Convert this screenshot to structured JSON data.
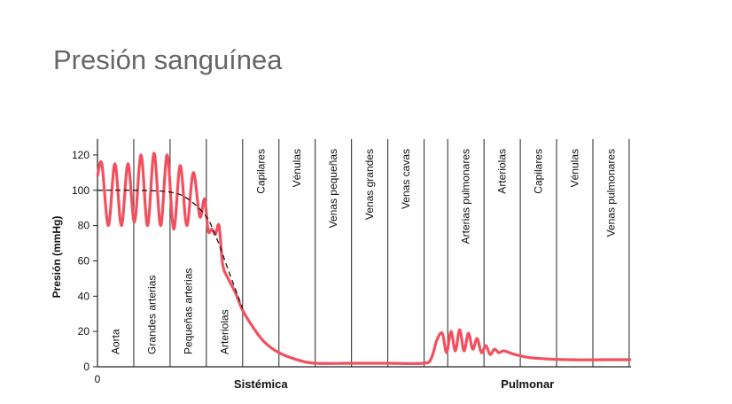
{
  "title": "Presión sanguínea",
  "chart_data": {
    "type": "line",
    "y_label": "Presión (mmHg)",
    "xlim": [
      0,
      14.7
    ],
    "xticks": [
      0
    ],
    "ylim": [
      0,
      129
    ],
    "yticks": [
      0,
      20,
      40,
      60,
      80,
      100,
      120
    ],
    "dividers": [
      1,
      2,
      3,
      4,
      5,
      6,
      7,
      8,
      9,
      9.65,
      10.65,
      11.65,
      12.65,
      13.65,
      14.65
    ],
    "columns": [
      "Aorta",
      "Grandes arterias",
      "Pequeñas arterias",
      "Arteriolas",
      "Capilares",
      "Vénulas",
      "Venas pequeñas",
      "Venas grandes",
      "Venas cavas",
      null,
      "Arterias pulmonares",
      "Arteriolas",
      "Capilares",
      "Vénulas",
      "Venas pulmonares"
    ],
    "groups": [
      "Sistémica",
      "Pulmonar"
    ],
    "series": [
      {
        "color": "#f2505e",
        "style": "solid",
        "x": [
          0,
          0.12,
          0.3,
          0.48,
          0.66,
          0.84,
          1.02,
          1.2,
          1.38,
          1.56,
          1.74,
          1.92,
          2.1,
          2.28,
          2.46,
          2.64,
          2.82,
          2.95,
          3.05,
          3.15,
          3.25,
          3.35,
          3.45,
          3.6,
          3.8,
          4.0,
          4.3,
          4.6,
          5.0,
          5.5,
          6.0,
          7,
          8,
          9,
          9.2,
          9.35,
          9.5,
          9.62,
          9.74,
          9.86,
          9.98,
          10.1,
          10.22,
          10.34,
          10.46,
          10.58,
          10.7,
          10.82,
          10.94,
          11.06,
          11.2,
          11.5,
          12,
          13,
          14,
          14.7
        ],
        "values": [
          108,
          115,
          80,
          115,
          80,
          115,
          82,
          120,
          80,
          121,
          80,
          120,
          78,
          114,
          80,
          110,
          85,
          95,
          77,
          78,
          75,
          80,
          58,
          50,
          42,
          32,
          22,
          14,
          8,
          4,
          2,
          2,
          2,
          2,
          5,
          15,
          19,
          8,
          20,
          9,
          21,
          9,
          19,
          10,
          16,
          8,
          12,
          7,
          10,
          8,
          9,
          7,
          5,
          4,
          4,
          4
        ]
      },
      {
        "color": "#222222",
        "style": "dashed",
        "x": [
          0,
          1,
          2,
          2.5,
          3,
          3.3,
          3.6,
          4
        ],
        "values": [
          100,
          100,
          99,
          95,
          85,
          72,
          55,
          33
        ]
      }
    ]
  }
}
